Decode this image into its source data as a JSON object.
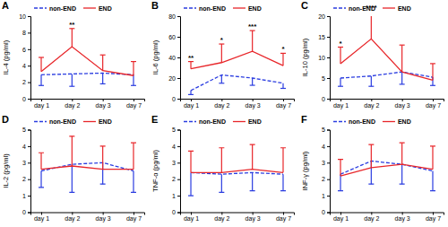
{
  "chart_data": [
    {
      "type": "line",
      "label": "A",
      "y_label": "IL-4 (pg/ml)",
      "categories": [
        "day 1",
        "day 2",
        "day 3",
        "day 7"
      ],
      "ylim": [
        0,
        10
      ],
      "yticks": [
        0,
        2,
        4,
        6,
        8,
        10
      ],
      "legend": "upper left",
      "series": [
        {
          "name": "non-END",
          "color": "#2b3de0",
          "line_style": "dashed",
          "values": [
            2.9,
            3.0,
            3.1,
            2.9
          ],
          "error": [
            1.3,
            1.5,
            1.3,
            1.3
          ]
        },
        {
          "name": "END",
          "color": "#e8262a",
          "line_style": "solid",
          "values": [
            3.3,
            6.3,
            3.4,
            2.8
          ],
          "error": [
            1.7,
            2.2,
            1.9,
            1.7
          ]
        }
      ],
      "annotations": [
        {
          "x": "day 2",
          "text": "**"
        }
      ]
    },
    {
      "type": "line",
      "label": "B",
      "y_label": "IL-6 (pg/ml)",
      "categories": [
        "day 1",
        "day 2",
        "day 3",
        "day 7"
      ],
      "ylim": [
        0,
        80
      ],
      "yticks": [
        0,
        20,
        40,
        60,
        80
      ],
      "legend": "upper left",
      "series": [
        {
          "name": "non-END",
          "color": "#2b3de0",
          "line_style": "dashed",
          "values": [
            8,
            23,
            20,
            15
          ],
          "error": [
            4,
            8,
            7,
            5
          ]
        },
        {
          "name": "END",
          "color": "#e8262a",
          "line_style": "solid",
          "values": [
            29,
            35,
            46,
            32
          ],
          "error": [
            7,
            18,
            20,
            12
          ]
        }
      ],
      "annotations": [
        {
          "x": "day 1",
          "text": "**"
        },
        {
          "x": "day 2",
          "text": "*"
        },
        {
          "x": "day 3",
          "text": "***"
        },
        {
          "x": "day 7",
          "text": "*"
        }
      ]
    },
    {
      "type": "line",
      "label": "C",
      "y_label": "IL-10 (pg/ml)",
      "categories": [
        "day 1",
        "day 2",
        "day 3",
        "day 7"
      ],
      "ylim": [
        0,
        20
      ],
      "yticks": [
        0,
        5,
        10,
        15,
        20
      ],
      "legend": "upper left",
      "series": [
        {
          "name": "non-END",
          "color": "#2b3de0",
          "line_style": "dashed",
          "values": [
            5,
            5.5,
            6.5,
            5.2
          ],
          "error": [
            2,
            2.5,
            3,
            2
          ]
        },
        {
          "name": "END",
          "color": "#e8262a",
          "line_style": "solid",
          "values": [
            8.5,
            14.5,
            6.5,
            4.5
          ],
          "error": [
            4,
            6.5,
            6.5,
            4
          ]
        }
      ],
      "annotations": [
        {
          "x": "day 1",
          "text": "*"
        },
        {
          "x": "day 2",
          "text": "****"
        }
      ]
    },
    {
      "type": "line",
      "label": "D",
      "y_label": "IL-2 (pg/ml)",
      "categories": [
        "day 1",
        "day 2",
        "day 3",
        "day 7"
      ],
      "ylim": [
        0,
        5
      ],
      "yticks": [
        0,
        1,
        2,
        3,
        4,
        5
      ],
      "legend": "upper left",
      "series": [
        {
          "name": "non-END",
          "color": "#2b3de0",
          "line_style": "dashed",
          "values": [
            2.5,
            2.9,
            3.0,
            2.5
          ],
          "error": [
            1,
            1.7,
            1.3,
            1.3
          ]
        },
        {
          "name": "END",
          "color": "#e8262a",
          "line_style": "solid",
          "values": [
            2.6,
            2.8,
            2.6,
            2.6
          ],
          "error": [
            1,
            1.8,
            1.4,
            1.6
          ]
        }
      ],
      "annotations": []
    },
    {
      "type": "line",
      "label": "E",
      "y_label": "TNF-α (pg/ml)",
      "categories": [
        "day 1",
        "day 2",
        "day 3",
        "day 7"
      ],
      "ylim": [
        0,
        5
      ],
      "yticks": [
        0,
        1,
        2,
        3,
        4,
        5
      ],
      "legend": "upper left",
      "series": [
        {
          "name": "non-END",
          "color": "#2b3de0",
          "line_style": "dashed",
          "values": [
            2.4,
            2.3,
            2.4,
            2.3
          ],
          "error": [
            1.4,
            1.1,
            1.1,
            1
          ]
        },
        {
          "name": "END",
          "color": "#e8262a",
          "line_style": "solid",
          "values": [
            2.4,
            2.4,
            2.6,
            2.4
          ],
          "error": [
            1.3,
            1.5,
            1.5,
            1.5
          ]
        }
      ],
      "annotations": []
    },
    {
      "type": "line",
      "label": "F",
      "y_label": "INF-γ (pg/ml)",
      "categories": [
        "day 1",
        "day 2",
        "day 3",
        "day 7"
      ],
      "ylim": [
        0,
        5
      ],
      "yticks": [
        0,
        1,
        2,
        3,
        4,
        5
      ],
      "legend": "upper left",
      "series": [
        {
          "name": "non-END",
          "color": "#2b3de0",
          "line_style": "dashed",
          "values": [
            2.3,
            3.1,
            2.9,
            2.5
          ],
          "error": [
            1,
            1.4,
            1.2,
            1.2
          ]
        },
        {
          "name": "END",
          "color": "#e8262a",
          "line_style": "solid",
          "values": [
            2.2,
            2.7,
            2.9,
            2.6
          ],
          "error": [
            1,
            1.4,
            1.3,
            1.4
          ]
        }
      ],
      "annotations": []
    }
  ]
}
